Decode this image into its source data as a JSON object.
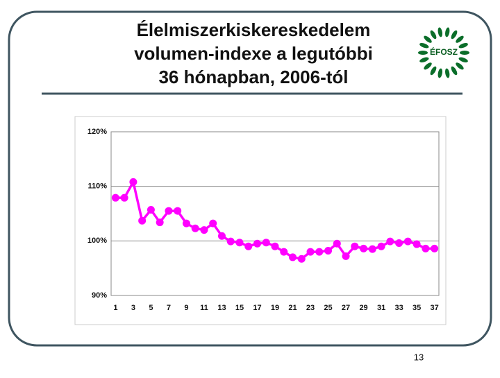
{
  "title_lines": [
    "Élelmiszerkiskereskedelem",
    "volumen-indexe a legutóbbi",
    "36 hónapban, 2006-tól"
  ],
  "logo": "ÉFOSZ",
  "page_number": "13",
  "chart_data": {
    "type": "line",
    "categories": [
      "1",
      null,
      "3",
      null,
      "5",
      null,
      "7",
      null,
      "9",
      null,
      "11",
      null,
      "13",
      null,
      "15",
      null,
      "17",
      null,
      "19",
      null,
      "21",
      null,
      "23",
      null,
      "25",
      null,
      "27",
      null,
      "29",
      null,
      "31",
      null,
      "33",
      null,
      "35",
      null,
      "37"
    ],
    "values": [
      107.9,
      107.9,
      110.8,
      103.7,
      105.7,
      103.4,
      105.5,
      105.5,
      103.2,
      102.3,
      102.0,
      103.2,
      100.9,
      99.9,
      99.7,
      99.0,
      99.5,
      99.7,
      99.0,
      98.0,
      97.0,
      96.7,
      98.0,
      98.0,
      98.2,
      99.5,
      97.2,
      99.0,
      98.6,
      98.5,
      99.0,
      99.9,
      99.6,
      99.9,
      99.4,
      98.6,
      98.6
    ],
    "color": "#ff00ff",
    "ylim": [
      90,
      120
    ],
    "yticks": [
      {
        "value": 90,
        "label": "90%"
      },
      {
        "value": 100,
        "label": "100%"
      },
      {
        "value": 110,
        "label": "110%"
      },
      {
        "value": 120,
        "label": "120%"
      }
    ],
    "grid": true
  }
}
